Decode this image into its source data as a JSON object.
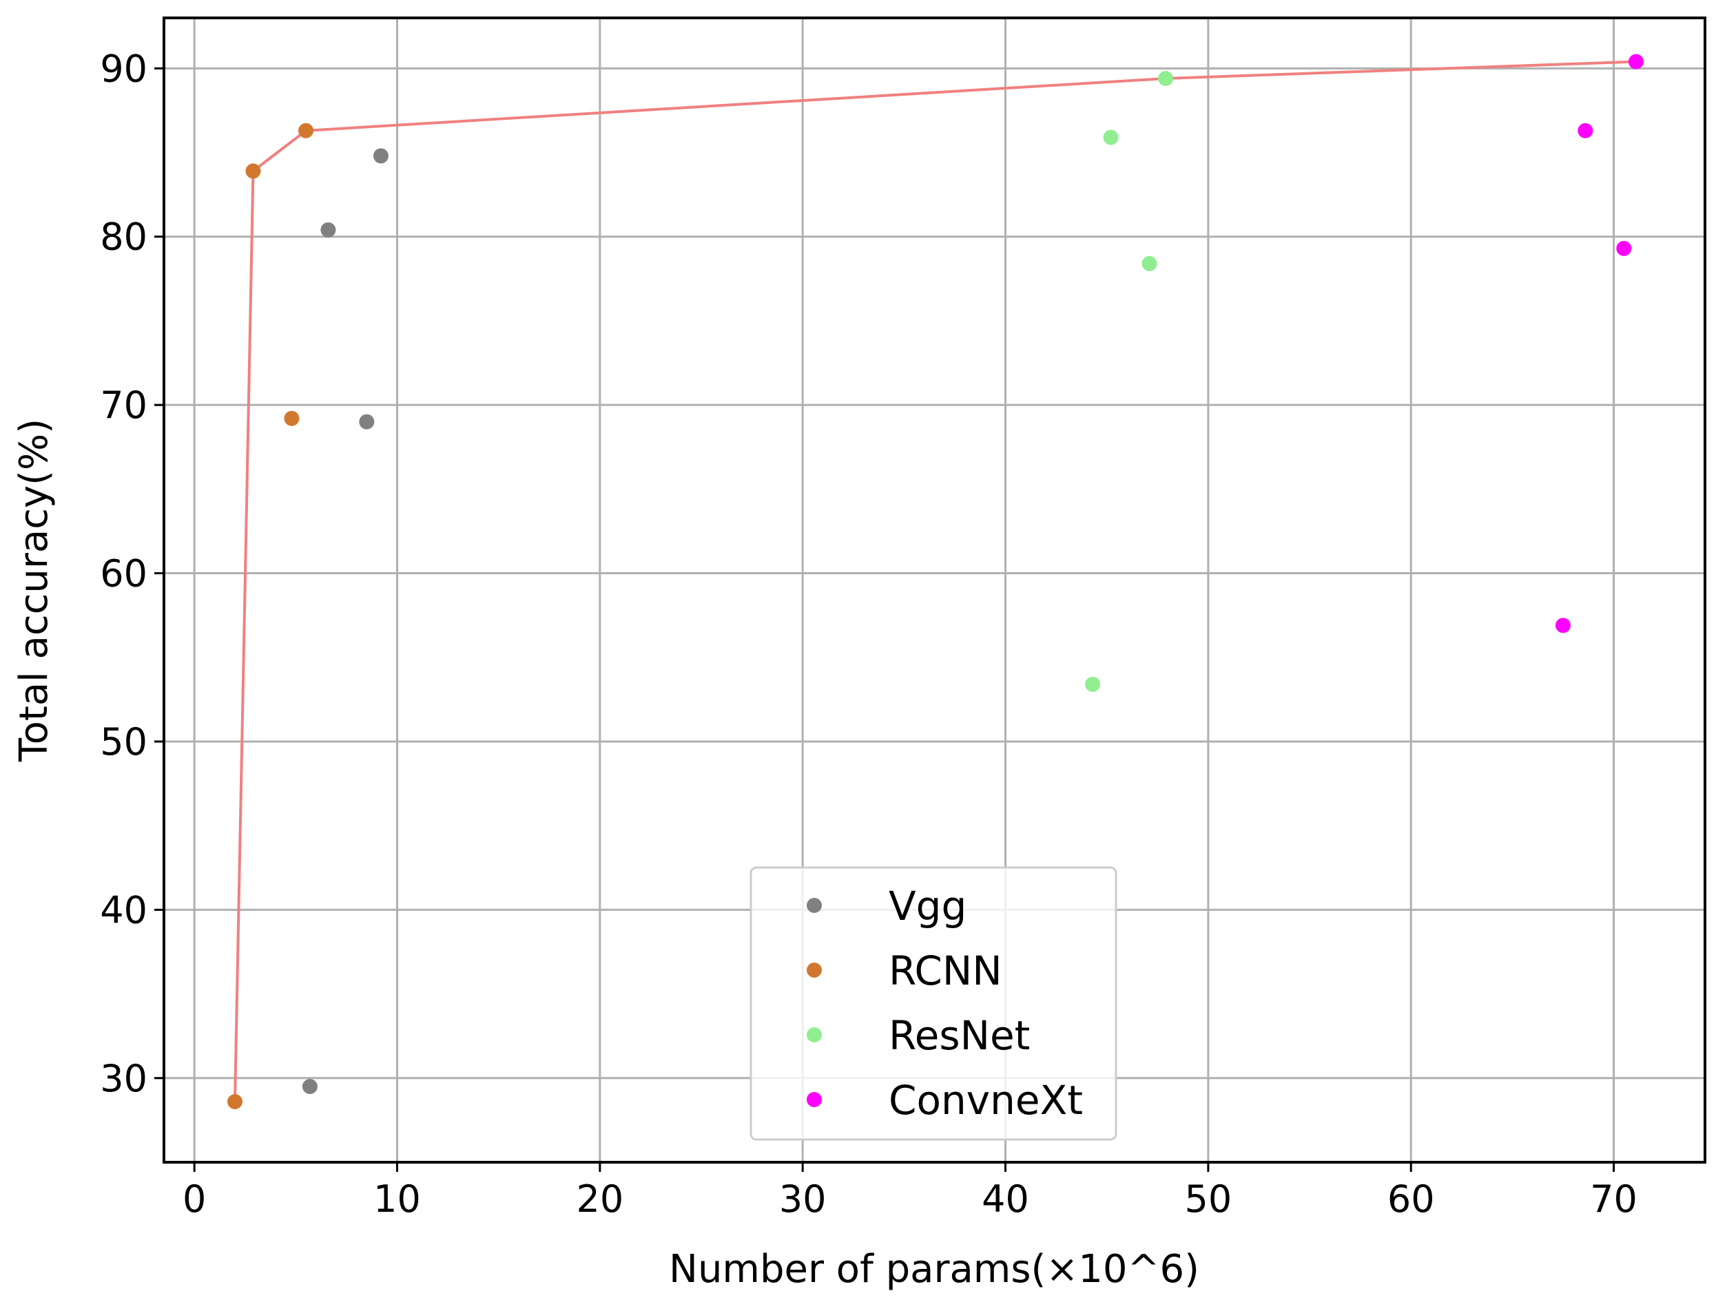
{
  "chart_data": {
    "type": "scatter",
    "title": "",
    "xlabel": "Number of params(×10^6)",
    "ylabel": "Total accuracy(%)",
    "xlim": [
      -1.5,
      74.5
    ],
    "ylim": [
      25,
      93
    ],
    "xticks": [
      0,
      10,
      20,
      30,
      40,
      50,
      60,
      70
    ],
    "yticks": [
      30,
      40,
      50,
      60,
      70,
      80,
      90
    ],
    "grid": true,
    "legend_position": "lower center",
    "series": [
      {
        "name": "Vgg",
        "color": "#808080",
        "points": [
          {
            "x": 5.7,
            "y": 29.5
          },
          {
            "x": 6.6,
            "y": 80.4
          },
          {
            "x": 8.5,
            "y": 69.0
          },
          {
            "x": 9.2,
            "y": 84.8
          }
        ]
      },
      {
        "name": "RCNN",
        "color": "#d2782e",
        "points": [
          {
            "x": 2.0,
            "y": 28.6
          },
          {
            "x": 2.9,
            "y": 83.9
          },
          {
            "x": 4.8,
            "y": 69.2
          },
          {
            "x": 5.5,
            "y": 86.3
          }
        ]
      },
      {
        "name": "ResNet",
        "color": "#90ee90",
        "points": [
          {
            "x": 44.3,
            "y": 53.4
          },
          {
            "x": 45.2,
            "y": 85.9
          },
          {
            "x": 47.1,
            "y": 78.4
          },
          {
            "x": 47.9,
            "y": 89.4
          }
        ]
      },
      {
        "name": "ConvneXt",
        "color": "#ff00ff",
        "points": [
          {
            "x": 67.5,
            "y": 56.9
          },
          {
            "x": 68.6,
            "y": 86.3
          },
          {
            "x": 70.5,
            "y": 79.3
          },
          {
            "x": 71.1,
            "y": 90.4
          }
        ]
      }
    ],
    "pareto_front": {
      "color": "#f08080",
      "points": [
        {
          "x": 2.0,
          "y": 28.6
        },
        {
          "x": 2.9,
          "y": 83.9
        },
        {
          "x": 5.5,
          "y": 86.3
        },
        {
          "x": 47.9,
          "y": 89.4
        },
        {
          "x": 71.1,
          "y": 90.4
        }
      ]
    }
  }
}
